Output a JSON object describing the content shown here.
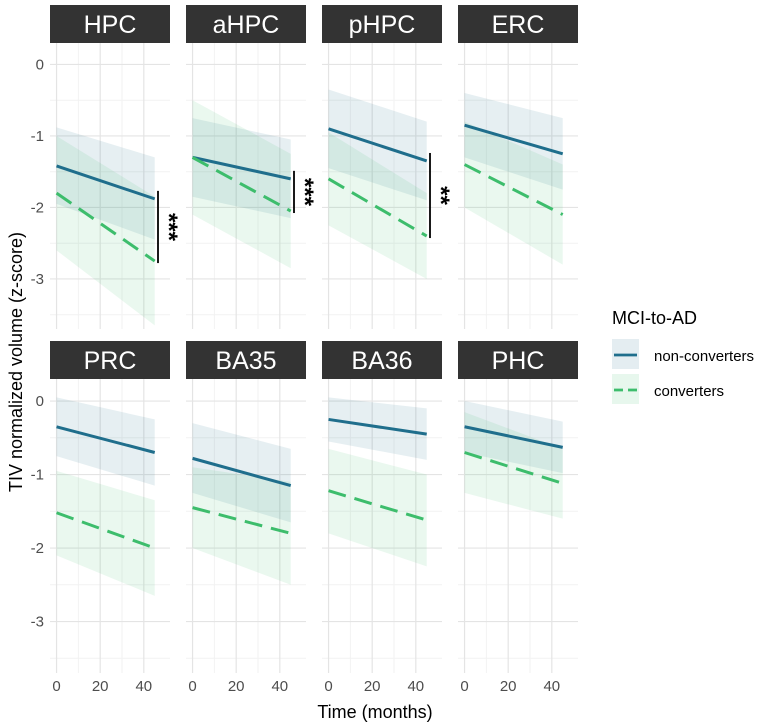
{
  "chart_data": {
    "type": "line",
    "xlabel": "Time (months)",
    "ylabel": "TIV normalized volume (z-score)",
    "xlim": [
      -3,
      52
    ],
    "ylim": [
      -3.7,
      0.3
    ],
    "x_ticks": [
      0,
      20,
      40
    ],
    "y_ticks": [
      0,
      -1,
      -2,
      -3
    ],
    "x_tick_labels": [
      "0",
      "20",
      "40"
    ],
    "y_tick_labels": [
      "0",
      "-1",
      "-2",
      "-3"
    ],
    "legend": {
      "title": "MCI-to-AD",
      "position": "right",
      "entries": [
        {
          "name": "non-converters",
          "color": "#1f6e8c",
          "dash": "solid"
        },
        {
          "name": "converters",
          "color": "#3dbd6c",
          "dash": "dashed"
        }
      ]
    },
    "x": [
      0,
      45
    ],
    "panels": [
      {
        "label": "HPC",
        "series": [
          {
            "name": "non-converters",
            "values": [
              -1.42,
              -1.88
            ],
            "lower": [
              -1.95,
              -2.45
            ],
            "upper": [
              -0.88,
              -1.3
            ]
          },
          {
            "name": "converters",
            "values": [
              -1.8,
              -2.75
            ],
            "lower": [
              -2.6,
              -3.65
            ],
            "upper": [
              -1.0,
              -1.85
            ]
          }
        ],
        "significance": {
          "label": "***",
          "y_range": [
            -1.88,
            -2.75
          ]
        }
      },
      {
        "label": "aHPC",
        "series": [
          {
            "name": "non-converters",
            "values": [
              -1.3,
              -1.6
            ],
            "lower": [
              -1.85,
              -2.15
            ],
            "upper": [
              -0.75,
              -1.05
            ]
          },
          {
            "name": "converters",
            "values": [
              -1.3,
              -2.05
            ],
            "lower": [
              -2.1,
              -2.85
            ],
            "upper": [
              -0.5,
              -1.25
            ]
          }
        ],
        "significance": {
          "label": "***",
          "y_range": [
            -1.6,
            -2.05
          ]
        }
      },
      {
        "label": "pHPC",
        "series": [
          {
            "name": "non-converters",
            "values": [
              -0.9,
              -1.35
            ],
            "lower": [
              -1.45,
              -1.9
            ],
            "upper": [
              -0.35,
              -0.8
            ]
          },
          {
            "name": "converters",
            "values": [
              -1.6,
              -2.4
            ],
            "lower": [
              -2.25,
              -3.0
            ],
            "upper": [
              -0.95,
              -1.8
            ]
          }
        ],
        "significance": {
          "label": "**",
          "y_range": [
            -1.35,
            -2.4
          ]
        }
      },
      {
        "label": "ERC",
        "series": [
          {
            "name": "non-converters",
            "values": [
              -0.85,
              -1.25
            ],
            "lower": [
              -1.3,
              -1.75
            ],
            "upper": [
              -0.4,
              -0.75
            ]
          },
          {
            "name": "converters",
            "values": [
              -1.4,
              -2.1
            ],
            "lower": [
              -2.0,
              -2.8
            ],
            "upper": [
              -0.8,
              -1.4
            ]
          }
        ]
      },
      {
        "label": "PRC",
        "series": [
          {
            "name": "non-converters",
            "values": [
              -0.35,
              -0.7
            ],
            "lower": [
              -0.75,
              -1.15
            ],
            "upper": [
              0.05,
              -0.25
            ]
          },
          {
            "name": "converters",
            "values": [
              -1.52,
              -2.0
            ],
            "lower": [
              -2.1,
              -2.65
            ],
            "upper": [
              -0.95,
              -1.35
            ]
          }
        ]
      },
      {
        "label": "BA35",
        "series": [
          {
            "name": "non-converters",
            "values": [
              -0.78,
              -1.15
            ],
            "lower": [
              -1.25,
              -1.65
            ],
            "upper": [
              -0.3,
              -0.65
            ]
          },
          {
            "name": "converters",
            "values": [
              -1.45,
              -1.8
            ],
            "lower": [
              -2.0,
              -2.5
            ],
            "upper": [
              -0.9,
              -1.1
            ]
          }
        ]
      },
      {
        "label": "BA36",
        "series": [
          {
            "name": "non-converters",
            "values": [
              -0.25,
              -0.45
            ],
            "lower": [
              -0.55,
              -0.8
            ],
            "upper": [
              0.05,
              -0.1
            ]
          },
          {
            "name": "converters",
            "values": [
              -1.22,
              -1.62
            ],
            "lower": [
              -1.8,
              -2.25
            ],
            "upper": [
              -0.65,
              -1.0
            ]
          }
        ]
      },
      {
        "label": "PHC",
        "series": [
          {
            "name": "non-converters",
            "values": [
              -0.35,
              -0.63
            ],
            "lower": [
              -0.7,
              -0.98
            ],
            "upper": [
              0.0,
              -0.28
            ]
          },
          {
            "name": "converters",
            "values": [
              -0.7,
              -1.12
            ],
            "lower": [
              -1.25,
              -1.6
            ],
            "upper": [
              -0.15,
              -0.65
            ]
          }
        ]
      }
    ]
  }
}
